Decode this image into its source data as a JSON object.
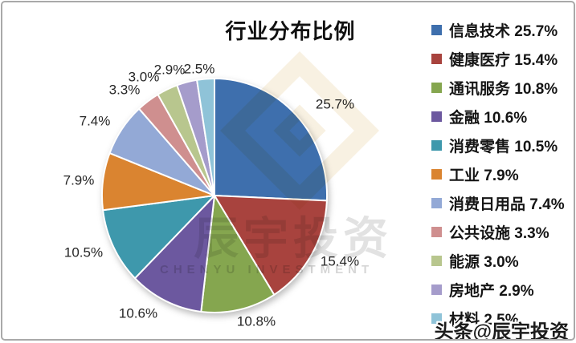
{
  "chart_data": {
    "type": "pie",
    "title": "行业分布比例",
    "unit": "%",
    "legend_position": "right",
    "label_format": "{value}%",
    "series": [
      {
        "label": "信息技术",
        "value": 25.7,
        "color": "#3E6FAD"
      },
      {
        "label": "健康医疗",
        "value": 15.4,
        "color": "#A8433E"
      },
      {
        "label": "通讯服务",
        "value": 10.8,
        "color": "#85A64F"
      },
      {
        "label": "金融",
        "value": 10.6,
        "color": "#6C589F"
      },
      {
        "label": "消费零售",
        "value": 10.5,
        "color": "#3E98AC"
      },
      {
        "label": "工业",
        "value": 7.9,
        "color": "#DA8430"
      },
      {
        "label": "消费日用品",
        "value": 7.4,
        "color": "#93A9D6"
      },
      {
        "label": "公共设施",
        "value": 3.3,
        "color": "#CF8F8F"
      },
      {
        "label": "能源",
        "value": 3.0,
        "color": "#B8C68E"
      },
      {
        "label": "房地产",
        "value": 2.9,
        "color": "#A59CCB"
      },
      {
        "label": "材料",
        "value": 2.5,
        "color": "#8FC3D8"
      }
    ]
  },
  "watermarks": {
    "center_text": "辰宇投资",
    "center_subtext": "CHENYU INVESTMENT",
    "bottom_right": "头条@辰宇投资"
  }
}
